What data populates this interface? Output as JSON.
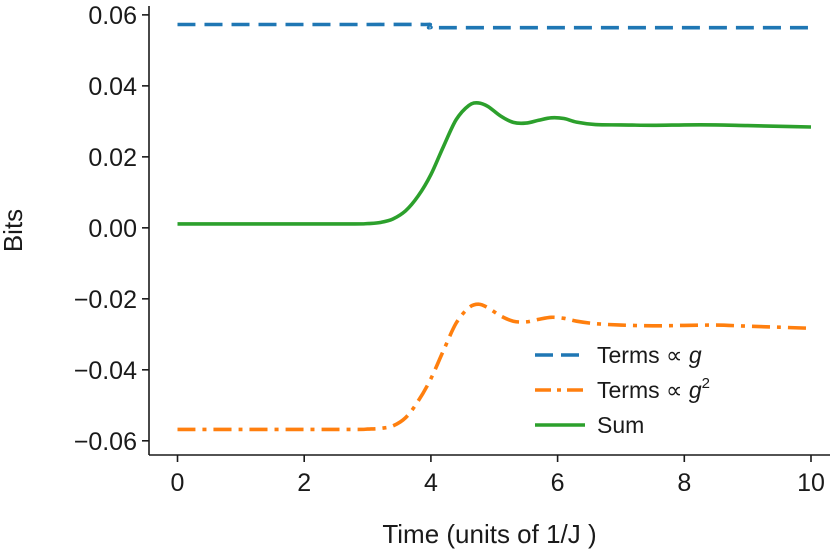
{
  "chart_data": {
    "type": "line",
    "title": "",
    "xlabel": "Time (units of 1/J )",
    "ylabel": "Bits",
    "xlim": [
      -0.45,
      10.3
    ],
    "ylim": [
      -0.064,
      0.0625
    ],
    "xticks": [
      0,
      2,
      4,
      6,
      8,
      10
    ],
    "xtick_labels": [
      "0",
      "2",
      "4",
      "6",
      "8",
      "10"
    ],
    "yticks": [
      0.06,
      0.04,
      0.02,
      0.0,
      -0.02,
      -0.04,
      -0.06
    ],
    "ytick_labels": [
      "0.06",
      "0.04",
      "0.02",
      "0.00",
      "−0.02",
      "−0.04",
      "−0.06"
    ],
    "grid": false,
    "legend_position": "lower-right",
    "series": [
      {
        "name": "Terms ∝ g",
        "legend_main": "Terms ∝ ",
        "legend_var": "g",
        "legend_sup": "",
        "color": "#1f77b4",
        "style": "dashed",
        "x": [
          0,
          1,
          2,
          3,
          3.9,
          3.97,
          4.0,
          4.05,
          5,
          6,
          7,
          8,
          9,
          10
        ],
        "y": [
          0.0573,
          0.0573,
          0.0573,
          0.0573,
          0.0573,
          0.0572,
          0.0565,
          0.0564,
          0.0564,
          0.0564,
          0.0564,
          0.0564,
          0.0564,
          0.0564
        ]
      },
      {
        "name": "Terms ∝ g²",
        "legend_main": "Terms ∝ ",
        "legend_var": "g",
        "legend_sup": "2",
        "color": "#ff7f0e",
        "style": "dashdot",
        "x": [
          0,
          1,
          2,
          2.8,
          3.0,
          3.2,
          3.4,
          3.6,
          3.8,
          4.0,
          4.2,
          4.4,
          4.6,
          4.75,
          4.9,
          5.1,
          5.3,
          5.5,
          5.7,
          5.9,
          6.1,
          6.3,
          6.6,
          7.0,
          7.5,
          8.0,
          8.5,
          9.0,
          9.5,
          10.0
        ],
        "y": [
          -0.0568,
          -0.0568,
          -0.0568,
          -0.0568,
          -0.0567,
          -0.0565,
          -0.0558,
          -0.0535,
          -0.0488,
          -0.0425,
          -0.0345,
          -0.0268,
          -0.0225,
          -0.0215,
          -0.0225,
          -0.0248,
          -0.0263,
          -0.0265,
          -0.0258,
          -0.0252,
          -0.0255,
          -0.0263,
          -0.027,
          -0.0274,
          -0.0276,
          -0.0275,
          -0.0274,
          -0.0277,
          -0.028,
          -0.0283
        ]
      },
      {
        "name": "Sum",
        "legend_main": "Sum",
        "legend_var": "",
        "legend_sup": "",
        "color": "#2ca02c",
        "style": "solid",
        "x": [
          0,
          1,
          2,
          2.8,
          3.0,
          3.2,
          3.4,
          3.6,
          3.8,
          4.0,
          4.2,
          4.4,
          4.6,
          4.75,
          4.9,
          5.1,
          5.3,
          5.5,
          5.7,
          5.9,
          6.1,
          6.3,
          6.6,
          7.0,
          7.5,
          8.0,
          8.5,
          9.0,
          9.5,
          10.0
        ],
        "y": [
          0.0011,
          0.0011,
          0.0011,
          0.0011,
          0.0012,
          0.0015,
          0.0025,
          0.0048,
          0.009,
          0.015,
          0.023,
          0.0305,
          0.0345,
          0.0352,
          0.0342,
          0.0315,
          0.0297,
          0.0295,
          0.0303,
          0.031,
          0.0308,
          0.0298,
          0.0291,
          0.029,
          0.0289,
          0.029,
          0.029,
          0.0288,
          0.0286,
          0.0284
        ]
      }
    ]
  }
}
